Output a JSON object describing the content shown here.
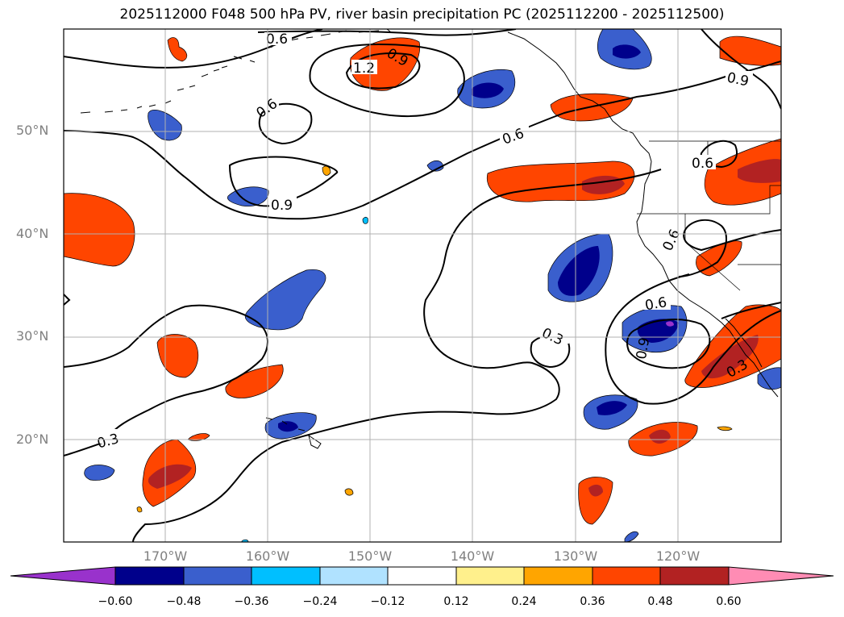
{
  "title": "2025112000 F048 500 hPa PV, river basin precipitation PC (2025112200 - 2025112500)",
  "lat_labels": [
    "50°N",
    "40°N",
    "30°N",
    "20°N"
  ],
  "lon_labels": [
    "170°W",
    "160°W",
    "150°W",
    "140°W",
    "130°W",
    "120°W"
  ],
  "contour_labels": {
    "c06_top": "0.6",
    "c12": "1.2",
    "c09_top": "0.9",
    "c09_ne": "0.9",
    "c06_w": "0.6",
    "c09_w": "0.9",
    "c06_mid": "0.6",
    "c06_ne": "0.6",
    "c06_coast": "0.6",
    "c06_sc": "0.6",
    "c09_sc": "0.9",
    "c03_mid": "0.3",
    "c03_se": "0.3",
    "c03_sw": "0.3"
  },
  "colorbar": {
    "ticks": [
      "−0.60",
      "−0.48",
      "−0.36",
      "−0.24",
      "−0.12",
      "0.12",
      "0.24",
      "0.36",
      "0.48",
      "0.60"
    ],
    "colors": [
      "#9932cc",
      "#00008b",
      "#3a5fcd",
      "#00bfff",
      "#b0e2ff",
      "#ffffff",
      "#fff08c",
      "#ffa500",
      "#ff4500",
      "#b22222",
      "#ff8cb4"
    ]
  }
}
